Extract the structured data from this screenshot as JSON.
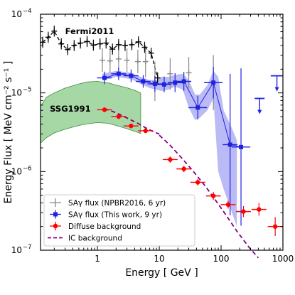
{
  "chart_data": {
    "type": "scatter",
    "xlabel": "Energy [ GeV ]",
    "ylabel": "Energy Flux [ MeV cm⁻² s⁻¹ ]",
    "xscale": "log",
    "yscale": "log",
    "xlim": [
      0.12,
      1000
    ],
    "ylim": [
      1e-07,
      0.0001
    ],
    "x_ticks": [
      {
        "value": 1,
        "label": "1"
      },
      {
        "value": 10,
        "label": "10"
      },
      {
        "value": 100,
        "label": "100"
      },
      {
        "value": 1000,
        "label": "1000"
      }
    ],
    "y_ticks": [
      {
        "value": 1e-07,
        "base": "10",
        "exp": "−7"
      },
      {
        "value": 1e-06,
        "base": "10",
        "exp": "−6"
      },
      {
        "value": 1e-05,
        "base": "10",
        "exp": "−5"
      },
      {
        "value": 0.0001,
        "base": "10",
        "exp": "−4"
      }
    ],
    "grid": false,
    "legend_position": "bottom-left",
    "annotations": [
      {
        "text": "Fermi2011",
        "x": 0.3,
        "y": 6.2e-05,
        "color": "#000000"
      },
      {
        "text": "SSG1991",
        "x": 0.17,
        "y": 6.3e-06,
        "color": "#2e7d32"
      }
    ],
    "bands": {
      "ssg1991": {
        "color": "#5cb85c",
        "x": [
          0.12,
          0.15,
          0.2,
          0.3,
          0.5,
          0.7,
          1.0,
          1.5,
          2,
          3,
          4,
          5
        ],
        "upper": [
          6.8e-06,
          8.8e-06,
          1e-05,
          1.15e-05,
          1.3e-05,
          1.38e-05,
          1.4e-05,
          1.34e-05,
          1.26e-05,
          1.16e-05,
          1.08e-05,
          1e-05
        ],
        "lower": [
          2.3e-06,
          2.7e-06,
          3.1e-06,
          3.45e-06,
          3.85e-06,
          4.05e-06,
          4.2e-06,
          4.1e-06,
          3.85e-06,
          3.5e-06,
          3.25e-06,
          3.05e-06
        ]
      },
      "this_work": {
        "color": "#8c8cf0",
        "x": [
          1.2,
          2,
          3.5,
          5,
          7,
          9,
          11,
          14,
          18,
          24,
          30,
          38,
          45,
          60,
          75,
          90,
          110,
          140,
          180
        ],
        "upper": [
          1.75e-05,
          1.9e-05,
          1.8e-05,
          1.6e-05,
          1.45e-05,
          1.45e-05,
          1.6e-05,
          1.6e-05,
          1.7e-05,
          1.75e-05,
          1.45e-05,
          9.5e-06,
          9.5e-06,
          1.25e-05,
          1.9e-05,
          1.6e-05,
          6e-06,
          4e-06,
          2.5e-06
        ],
        "lower": [
          1.45e-05,
          1.6e-05,
          1.5e-05,
          1.3e-05,
          1.15e-05,
          1.1e-05,
          1.05e-05,
          1.1e-05,
          1.2e-05,
          1.1e-05,
          6.5e-06,
          4.5e-06,
          4.8e-06,
          6e-06,
          8.5e-06,
          1e-06,
          6e-07,
          3.5e-07,
          2e-07
        ]
      }
    },
    "series": [
      {
        "name": "SAγ flux (NPBR2016, 6 yr)",
        "kind": "points",
        "color": "#888888",
        "marker": "plus",
        "x": [
          1.2,
          1.6,
          2.2,
          3.0,
          4.5,
          6.0,
          8.5,
          15,
          30,
          75
        ],
        "y": [
          2.6e-05,
          2.55e-05,
          2.7e-05,
          2.6e-05,
          2.5e-05,
          2.5e-05,
          1.4e-05,
          1.75e-05,
          1.8e-05,
          1.35e-05
        ],
        "yerr": [
          0.15,
          0.15,
          0.15,
          0.15,
          0.15,
          0.2,
          0.25,
          0.2,
          0.2,
          0.35
        ]
      },
      {
        "name": "SAγ flux (This work, 9 yr)",
        "kind": "points",
        "color": "#1f22e0",
        "marker": "square",
        "x": [
          1.3,
          2.2,
          3.5,
          5.5,
          8.5,
          12,
          18,
          25,
          42,
          75,
          140,
          210
        ],
        "y": [
          1.55e-05,
          1.75e-05,
          1.65e-05,
          1.4e-05,
          1.3e-05,
          1.28e-05,
          1.35e-05,
          1.4e-05,
          6.5e-06,
          1.35e-05,
          2.2e-06,
          2.05e-06
        ],
        "xerr": [
          0.12,
          0.12,
          0.12,
          0.12,
          0.12,
          0.12,
          0.12,
          0.12,
          0.15,
          0.15,
          0.12,
          0.15
        ],
        "yerr": [
          0.08,
          0.08,
          0.08,
          0.08,
          0.1,
          0.1,
          0.12,
          0.12,
          0.15,
          0.2,
          0.9,
          1.0
        ],
        "upper_limits": [
          {
            "x": 420,
            "y": 8.5e-06,
            "xerr": 0.08
          },
          {
            "x": 800,
            "y": 1.65e-05,
            "xerr": 0.1
          }
        ]
      },
      {
        "name": "Diffuse background",
        "kind": "points",
        "color": "#ff0000",
        "marker": "circle",
        "x": [
          1.3,
          2.2,
          3.5,
          6.0,
          15,
          25,
          42,
          75,
          130,
          230,
          410,
          750
        ],
        "y": [
          6.1e-06,
          5e-06,
          3.8e-06,
          3.3e-06,
          1.42e-06,
          1.08e-06,
          7.3e-07,
          4.9e-07,
          3.8e-07,
          3.1e-07,
          3.3e-07,
          2e-07
        ],
        "xerr": [
          0.12,
          0.12,
          0.12,
          0.12,
          0.12,
          0.12,
          0.12,
          0.12,
          0.12,
          0.12,
          0.12,
          0.12
        ],
        "yerr": [
          0.03,
          0.03,
          0.03,
          0.03,
          0.04,
          0.04,
          0.04,
          0.05,
          0.05,
          0.07,
          0.08,
          0.12
        ]
      },
      {
        "name": "IC background",
        "kind": "dashed_line",
        "color": "#800080",
        "segments": [
          {
            "x": [
              1.3,
              2,
              3,
              4.5,
              6,
              8.5,
              10
            ],
            "y": [
              6.3e-06,
              5.6e-06,
              4.8e-06,
              4.1e-06,
              3.6e-06,
              3.15e-06,
              3e-06
            ]
          },
          {
            "x": [
              10,
              15,
              22,
              35,
              55,
              80,
              120,
              180,
              280,
              400
            ],
            "y": [
              2.9e-06,
              2.15e-06,
              1.55e-06,
              1.02e-06,
              6.6e-07,
              4.4e-07,
              2.8e-07,
              1.75e-07,
              1.1e-07,
              8e-08
            ]
          }
        ]
      },
      {
        "name": "Fermi2011",
        "kind": "points_dashed",
        "color": "#000000",
        "marker": "plus",
        "x": [
          0.13,
          0.16,
          0.2,
          0.26,
          0.33,
          0.42,
          0.53,
          0.68,
          0.86,
          1.1,
          1.38,
          1.75,
          2.2,
          2.8,
          3.6,
          4.6,
          5.8,
          7.4,
          9.4
        ],
        "y": [
          4.4e-05,
          5.1e-05,
          6.1e-05,
          4.2e-05,
          3.55e-05,
          4e-05,
          4.3e-05,
          4.5e-05,
          4.05e-05,
          4.2e-05,
          4.3e-05,
          3.6e-05,
          4.1e-05,
          4e-05,
          4.1e-05,
          4.45e-05,
          3.8e-05,
          3.2e-05,
          1.55e-05
        ],
        "yerr": [
          0.07,
          0.07,
          0.07,
          0.07,
          0.07,
          0.07,
          0.07,
          0.07,
          0.07,
          0.07,
          0.07,
          0.07,
          0.07,
          0.07,
          0.07,
          0.07,
          0.07,
          0.07,
          0.07
        ]
      }
    ]
  }
}
